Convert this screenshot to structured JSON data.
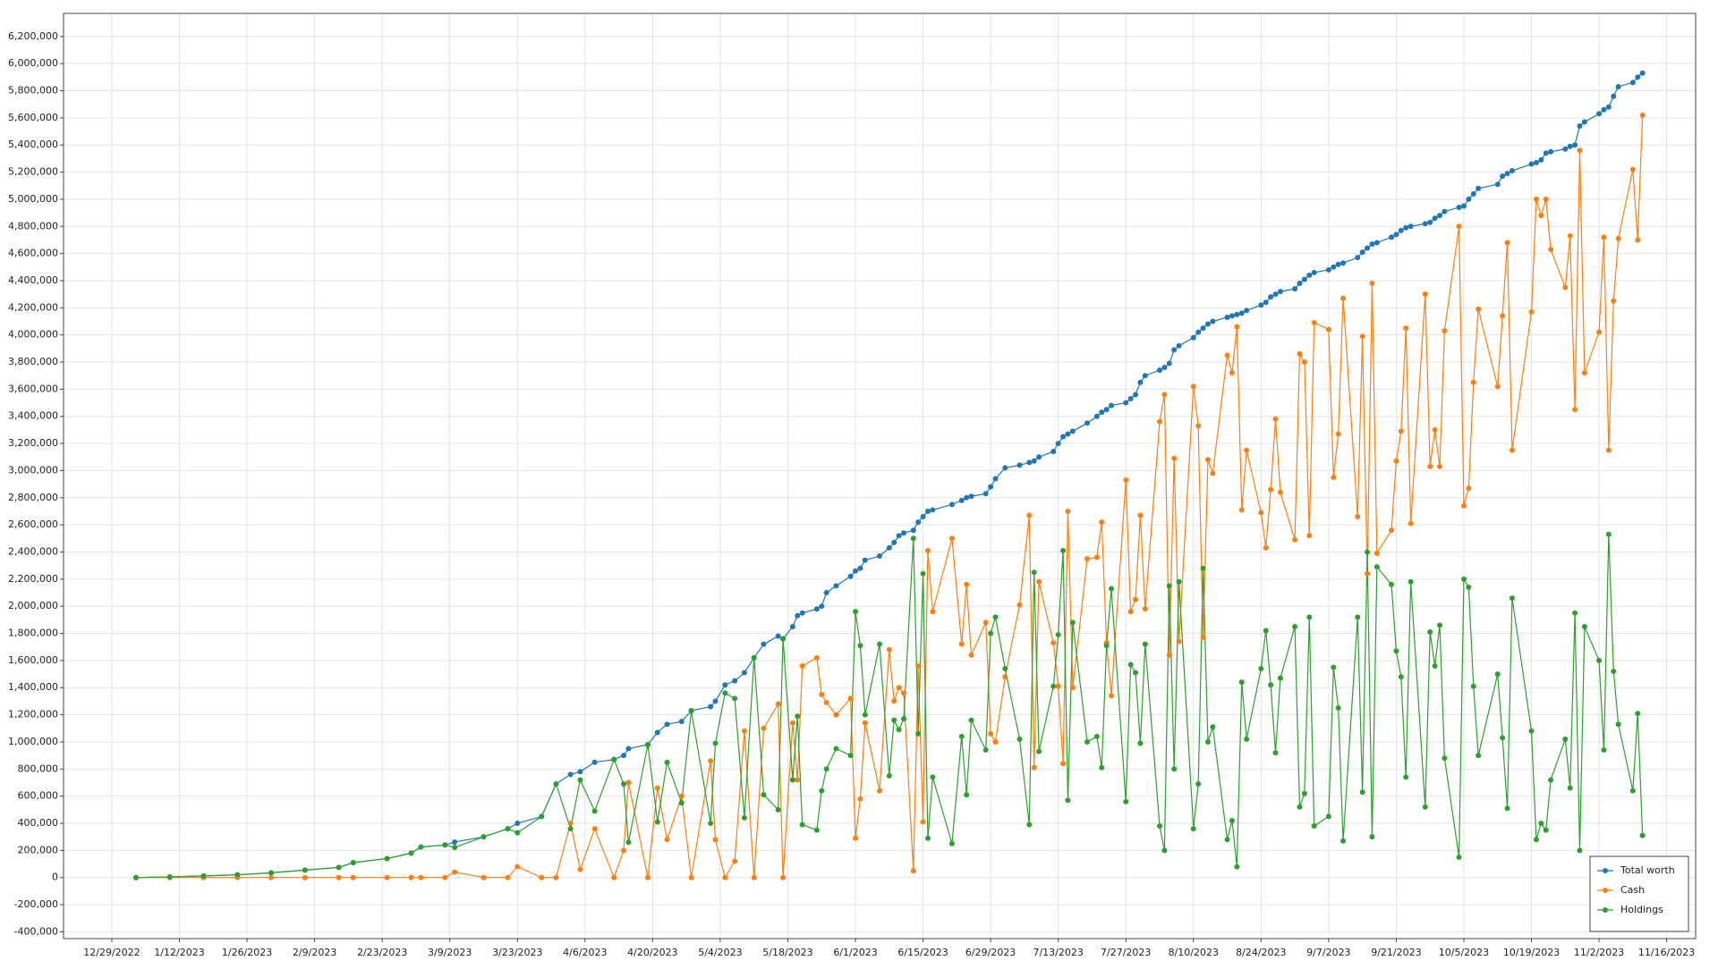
{
  "chart_data": {
    "type": "line",
    "x": [
      "1/3/2023",
      "1/10/2023",
      "1/17/2023",
      "1/24/2023",
      "1/31/2023",
      "2/7/2023",
      "2/14/2023",
      "2/17/2023",
      "2/24/2023",
      "3/1/2023",
      "3/3/2023",
      "3/8/2023",
      "3/10/2023",
      "3/16/2023",
      "3/21/2023",
      "3/23/2023",
      "3/28/2023",
      "3/31/2023",
      "4/3/2023",
      "4/5/2023",
      "4/8/2023",
      "4/12/2023",
      "4/14/2023",
      "4/15/2023",
      "4/19/2023",
      "4/21/2023",
      "4/23/2023",
      "4/26/2023",
      "4/28/2023",
      "5/2/2023",
      "5/3/2023",
      "5/5/2023",
      "5/7/2023",
      "5/9/2023",
      "5/11/2023",
      "5/13/2023",
      "5/16/2023",
      "5/17/2023",
      "5/19/2023",
      "5/20/2023",
      "5/21/2023",
      "5/24/2023",
      "5/25/2023",
      "5/26/2023",
      "5/28/2023",
      "5/31/2023",
      "6/1/2023",
      "6/2/2023",
      "6/3/2023",
      "6/6/2023",
      "6/8/2023",
      "6/9/2023",
      "6/10/2023",
      "6/11/2023",
      "6/13/2023",
      "6/14/2023",
      "6/15/2023",
      "6/16/2023",
      "6/17/2023",
      "6/21/2023",
      "6/23/2023",
      "6/24/2023",
      "6/25/2023",
      "6/28/2023",
      "6/29/2023",
      "6/30/2023",
      "7/2/2023",
      "7/5/2023",
      "7/7/2023",
      "7/8/2023",
      "7/9/2023",
      "7/12/2023",
      "7/13/2023",
      "7/14/2023",
      "7/15/2023",
      "7/16/2023",
      "7/19/2023",
      "7/21/2023",
      "7/22/2023",
      "7/23/2023",
      "7/24/2023",
      "7/27/2023",
      "7/28/2023",
      "7/29/2023",
      "7/30/2023",
      "7/31/2023",
      "8/3/2023",
      "8/4/2023",
      "8/5/2023",
      "8/6/2023",
      "8/7/2023",
      "8/10/2023",
      "8/11/2023",
      "8/12/2023",
      "8/13/2023",
      "8/14/2023",
      "8/17/2023",
      "8/18/2023",
      "8/19/2023",
      "8/20/2023",
      "8/21/2023",
      "8/24/2023",
      "8/25/2023",
      "8/26/2023",
      "8/27/2023",
      "8/28/2023",
      "8/31/2023",
      "9/1/2023",
      "9/2/2023",
      "9/3/2023",
      "9/4/2023",
      "9/7/2023",
      "9/8/2023",
      "9/9/2023",
      "9/10/2023",
      "9/13/2023",
      "9/14/2023",
      "9/15/2023",
      "9/16/2023",
      "9/17/2023",
      "9/20/2023",
      "9/21/2023",
      "9/22/2023",
      "9/23/2023",
      "9/24/2023",
      "9/27/2023",
      "9/28/2023",
      "9/29/2023",
      "9/30/2023",
      "10/1/2023",
      "10/4/2023",
      "10/5/2023",
      "10/6/2023",
      "10/7/2023",
      "10/8/2023",
      "10/12/2023",
      "10/13/2023",
      "10/14/2023",
      "10/15/2023",
      "10/19/2023",
      "10/20/2023",
      "10/21/2023",
      "10/22/2023",
      "10/23/2023",
      "10/26/2023",
      "10/27/2023",
      "10/28/2023",
      "10/29/2023",
      "10/30/2023",
      "11/2/2023",
      "11/3/2023",
      "11/4/2023",
      "11/5/2023",
      "11/6/2023",
      "11/9/2023",
      "11/10/2023",
      "11/11/2023"
    ],
    "series": [
      {
        "name": "Total worth",
        "color": "#1f77b4",
        "values": [
          0,
          5000,
          12000,
          20000,
          35000,
          55000,
          75000,
          110000,
          140000,
          180000,
          225000,
          240000,
          262000,
          300000,
          360000,
          400000,
          450000,
          690000,
          760000,
          780000,
          850000,
          870000,
          900000,
          950000,
          980000,
          1070000,
          1130000,
          1150000,
          1230000,
          1260000,
          1300000,
          1420000,
          1450000,
          1510000,
          1620000,
          1720000,
          1780000,
          1760000,
          1850000,
          1930000,
          1950000,
          1980000,
          2000000,
          2100000,
          2150000,
          2220000,
          2260000,
          2280000,
          2340000,
          2370000,
          2430000,
          2470000,
          2520000,
          2540000,
          2560000,
          2620000,
          2660000,
          2700000,
          2710000,
          2750000,
          2780000,
          2800000,
          2810000,
          2830000,
          2880000,
          2940000,
          3020000,
          3040000,
          3060000,
          3070000,
          3100000,
          3140000,
          3200000,
          3250000,
          3270000,
          3290000,
          3350000,
          3400000,
          3430000,
          3450000,
          3480000,
          3500000,
          3530000,
          3560000,
          3650000,
          3700000,
          3740000,
          3760000,
          3790000,
          3890000,
          3920000,
          3980000,
          4020000,
          4050000,
          4080000,
          4100000,
          4130000,
          4140000,
          4150000,
          4160000,
          4180000,
          4220000,
          4240000,
          4280000,
          4300000,
          4320000,
          4340000,
          4380000,
          4410000,
          4440000,
          4460000,
          4480000,
          4500000,
          4520000,
          4530000,
          4570000,
          4610000,
          4640000,
          4670000,
          4680000,
          4720000,
          4740000,
          4770000,
          4790000,
          4800000,
          4820000,
          4830000,
          4860000,
          4880000,
          4910000,
          4940000,
          4950000,
          5000000,
          5040000,
          5080000,
          5110000,
          5170000,
          5190000,
          5210000,
          5260000,
          5270000,
          5290000,
          5340000,
          5350000,
          5370000,
          5390000,
          5400000,
          5540000,
          5570000,
          5630000,
          5660000,
          5680000,
          5760000,
          5830000,
          5860000,
          5900000,
          5930000
        ]
      },
      {
        "name": "Cash",
        "color": "#ff7f0e",
        "values": [
          0,
          0,
          0,
          0,
          0,
          0,
          0,
          0,
          0,
          0,
          0,
          0,
          40000,
          0,
          0,
          80000,
          0,
          0,
          400000,
          60000,
          360000,
          0,
          200000,
          700000,
          0,
          660000,
          280000,
          600000,
          0,
          860000,
          280000,
          0,
          120000,
          1080000,
          0,
          1100000,
          1280000,
          0,
          1140000,
          720000,
          1560000,
          1620000,
          1350000,
          1290000,
          1200000,
          1320000,
          290000,
          580000,
          1140000,
          640000,
          1680000,
          1300000,
          1400000,
          1360000,
          50000,
          1560000,
          410000,
          2410000,
          1960000,
          2500000,
          1720000,
          2160000,
          1640000,
          1880000,
          1060000,
          1000000,
          1480000,
          2010000,
          2670000,
          810000,
          2180000,
          1730000,
          1410000,
          840000,
          2700000,
          1400000,
          2350000,
          2360000,
          2620000,
          1730000,
          1340000,
          2930000,
          1960000,
          2050000,
          2670000,
          1980000,
          3360000,
          3560000,
          1640000,
          3090000,
          1740000,
          3620000,
          3330000,
          1770000,
          3080000,
          2980000,
          3850000,
          3720000,
          4060000,
          2710000,
          3150000,
          2690000,
          2430000,
          2860000,
          3380000,
          2840000,
          2490000,
          3860000,
          3800000,
          2520000,
          4090000,
          4040000,
          2950000,
          3270000,
          4270000,
          2660000,
          3990000,
          2240000,
          4380000,
          2390000,
          2560000,
          3070000,
          3290000,
          4050000,
          2610000,
          4300000,
          3030000,
          3300000,
          3030000,
          4030000,
          4800000,
          2740000,
          2870000,
          3650000,
          4190000,
          3620000,
          4140000,
          4680000,
          3150000,
          4170000,
          5000000,
          4880000,
          5000000,
          4630000,
          4350000,
          4730000,
          3450000,
          5360000,
          3720000,
          4020000,
          4720000,
          3150000,
          4250000,
          4710000,
          5220000,
          4700000,
          5620000
        ]
      },
      {
        "name": "Holdings",
        "color": "#2ca02c",
        "values": [
          0,
          5000,
          12000,
          20000,
          35000,
          55000,
          75000,
          110000,
          140000,
          180000,
          225000,
          240000,
          222000,
          300000,
          360000,
          330000,
          450000,
          690000,
          360000,
          720000,
          490000,
          870000,
          690000,
          260000,
          980000,
          410000,
          850000,
          550000,
          1230000,
          400000,
          990000,
          1360000,
          1320000,
          440000,
          1620000,
          610000,
          500000,
          1760000,
          720000,
          1190000,
          390000,
          350000,
          640000,
          800000,
          950000,
          900000,
          1960000,
          1710000,
          1200000,
          1720000,
          750000,
          1160000,
          1090000,
          1170000,
          2500000,
          1060000,
          2240000,
          290000,
          740000,
          250000,
          1040000,
          610000,
          1160000,
          940000,
          1800000,
          1920000,
          1540000,
          1020000,
          390000,
          2250000,
          930000,
          1410000,
          1790000,
          2410000,
          570000,
          1880000,
          1000000,
          1040000,
          810000,
          1710000,
          2130000,
          560000,
          1570000,
          1510000,
          990000,
          1720000,
          380000,
          200000,
          2150000,
          800000,
          2180000,
          360000,
          690000,
          2280000,
          1000000,
          1110000,
          280000,
          420000,
          80000,
          1440000,
          1020000,
          1540000,
          1820000,
          1420000,
          920000,
          1470000,
          1850000,
          520000,
          620000,
          1920000,
          380000,
          450000,
          1550000,
          1250000,
          270000,
          1920000,
          630000,
          2400000,
          300000,
          2290000,
          2160000,
          1670000,
          1480000,
          740000,
          2180000,
          520000,
          1810000,
          1560000,
          1860000,
          880000,
          150000,
          2200000,
          2140000,
          1410000,
          900000,
          1500000,
          1030000,
          510000,
          2060000,
          1080000,
          280000,
          400000,
          350000,
          720000,
          1020000,
          660000,
          1950000,
          200000,
          1850000,
          1600000,
          940000,
          2530000,
          1520000,
          1130000,
          640000,
          1210000,
          310000
        ]
      }
    ],
    "xlim": [
      "12/19/2022",
      "11/22/2023"
    ],
    "xticks": [
      "12/29/2022",
      "1/12/2023",
      "1/26/2023",
      "2/9/2023",
      "2/23/2023",
      "3/9/2023",
      "3/23/2023",
      "4/6/2023",
      "4/20/2023",
      "5/4/2023",
      "5/18/2023",
      "6/1/2023",
      "6/15/2023",
      "6/29/2023",
      "7/13/2023",
      "7/27/2023",
      "8/10/2023",
      "8/24/2023",
      "9/7/2023",
      "9/21/2023",
      "10/5/2023",
      "10/19/2023",
      "11/2/2023",
      "11/16/2023"
    ],
    "ylim": [
      -450000,
      6370000
    ],
    "yticks": [
      {
        "value": -400000,
        "label": "-400,000"
      },
      {
        "value": -200000,
        "label": "-200,000"
      },
      0,
      {
        "value": 200000,
        "label": "200,000"
      },
      {
        "value": 400000,
        "label": "400,000"
      },
      {
        "value": 600000,
        "label": "600,000"
      },
      {
        "value": 800000,
        "label": "800,000"
      },
      {
        "value": 1000000,
        "label": "1,000,000"
      },
      {
        "value": 1200000,
        "label": "1,200,000"
      },
      {
        "value": 1400000,
        "label": "1,400,000"
      },
      {
        "value": 1600000,
        "label": "1,600,000"
      },
      {
        "value": 1800000,
        "label": "1,800,000"
      },
      {
        "value": 2000000,
        "label": "2,000,000"
      },
      {
        "value": 2200000,
        "label": "2,200,000"
      },
      {
        "value": 2400000,
        "label": "2,400,000"
      },
      {
        "value": 2600000,
        "label": "2,600,000"
      },
      {
        "value": 2800000,
        "label": "2,800,000"
      },
      {
        "value": 3000000,
        "label": "3,000,000"
      },
      {
        "value": 3200000,
        "label": "3,200,000"
      },
      {
        "value": 3400000,
        "label": "3,400,000"
      },
      {
        "value": 3600000,
        "label": "3,600,000"
      },
      {
        "value": 3800000,
        "label": "3,800,000"
      },
      {
        "value": 4000000,
        "label": "4,000,000"
      },
      {
        "value": 4200000,
        "label": "4,200,000"
      },
      {
        "value": 4400000,
        "label": "4,400,000"
      },
      {
        "value": 4600000,
        "label": "4,600,000"
      },
      {
        "value": 4800000,
        "label": "4,800,000"
      },
      {
        "value": 5000000,
        "label": "5,000,000"
      },
      {
        "value": 5200000,
        "label": "5,200,000"
      },
      {
        "value": 5400000,
        "label": "5,400,000"
      },
      {
        "value": 5600000,
        "label": "5,600,000"
      },
      {
        "value": 5800000,
        "label": "5,800,000"
      },
      {
        "value": 6000000,
        "label": "6,000,000"
      },
      {
        "value": 6200000,
        "label": "6,200,000"
      }
    ],
    "grid": true,
    "legend": "bottom-right"
  }
}
